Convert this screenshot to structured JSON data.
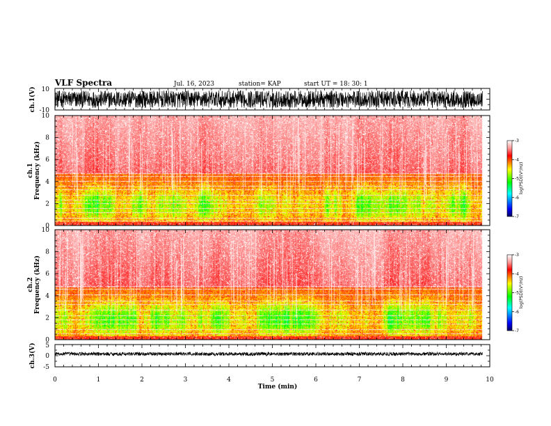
{
  "header": {
    "title": "VLF Spectra",
    "date": "Jul. 16, 2023",
    "station": "station= KAP",
    "start": "start UT =  18: 30: 1"
  },
  "chart_data": [
    {
      "type": "line",
      "name": "ch1-waveform",
      "ylabel": "ch.1(V)",
      "ylim": [
        -10,
        10
      ],
      "yticks": [
        "10",
        "-10"
      ],
      "xlim": [
        0,
        10
      ],
      "signal": {
        "amplitude_range": [
          -8,
          8
        ],
        "duration_min": 9.83
      }
    },
    {
      "type": "heatmap",
      "name": "ch1-spectrogram",
      "ylabel": "ch.1\nFrequency (kHz)",
      "ylim": [
        0,
        10
      ],
      "yticks": [
        "0",
        "2",
        "4",
        "6",
        "8",
        "10"
      ],
      "xlim": [
        0,
        10
      ],
      "duration_min": 9.83,
      "colorbar": {
        "label": "log(PSD)(V²/Hz)",
        "range": [
          -7,
          -3
        ],
        "ticks": [
          "-3",
          "-4",
          "-5",
          "-6",
          "-7"
        ]
      },
      "bands_khz": [
        0.45,
        0.7,
        1.2,
        1.6,
        2.05,
        2.35,
        2.8,
        3.3,
        3.6,
        4.05,
        4.5,
        4.75
      ]
    },
    {
      "type": "heatmap",
      "name": "ch2-spectrogram",
      "ylabel": "ch.2\nFrequency (kHz)",
      "ylim": [
        0,
        10
      ],
      "yticks": [
        "0",
        "2",
        "4",
        "6",
        "8",
        "10"
      ],
      "xlim": [
        0,
        10
      ],
      "duration_min": 9.83,
      "colorbar": {
        "label": "log(PSD)(V²/Hz)",
        "range": [
          -7,
          -3
        ],
        "ticks": [
          "-3",
          "-4",
          "-5",
          "-6",
          "-7"
        ]
      },
      "bands_khz": [
        0.6,
        0.95,
        1.45,
        1.85,
        2.2,
        2.7,
        3.2,
        3.55,
        4.1,
        4.6,
        4.9
      ]
    },
    {
      "type": "line",
      "name": "ch3-waveform",
      "ylabel": "ch.3(V)",
      "ylim": [
        -5,
        5
      ],
      "yticks": [
        "5",
        "0",
        "-5"
      ],
      "xlim": [
        0,
        10
      ],
      "signal": {
        "amplitude_range": [
          -0.8,
          0.8
        ],
        "offset": 0.8,
        "duration_min": 9.83
      }
    }
  ],
  "xaxis": {
    "label": "Time (min)",
    "ticks": [
      "0",
      "1",
      "2",
      "3",
      "4",
      "5",
      "6",
      "7",
      "8",
      "9",
      "10"
    ]
  },
  "colors": {
    "colorbar_stops": [
      "#000080",
      "#0000ff",
      "#00ffff",
      "#00ff00",
      "#ffff00",
      "#ff0000",
      "#ffffff"
    ]
  }
}
